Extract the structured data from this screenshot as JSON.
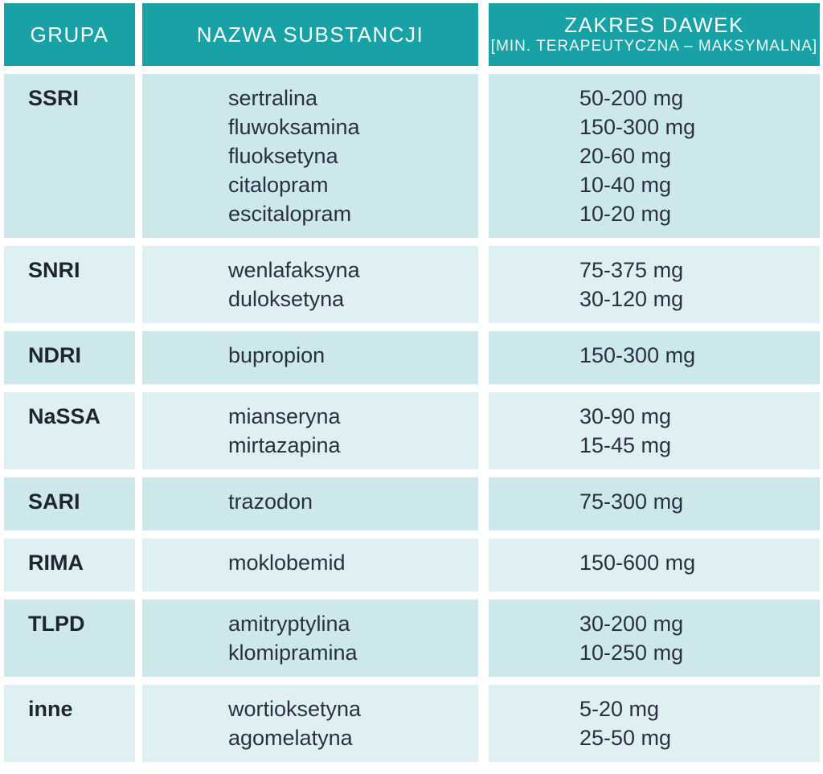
{
  "table": {
    "header": {
      "grupa": "GRUPA",
      "nazwa": "NAZWA SUBSTANCJI",
      "zakres_title": "ZAKRES DAWEK",
      "zakres_subtitle": "[MIN. TERAPEUTYCZNA – MAKSYMALNA]"
    },
    "rows": [
      {
        "group": "SSRI",
        "substances": [
          "sertralina",
          "fluwoksamina",
          "fluoksetyna",
          "citalopram",
          "escitalopram"
        ],
        "doses": [
          "50-200 mg",
          "150-300 mg",
          "20-60 mg",
          "10-40 mg",
          "10-20 mg"
        ]
      },
      {
        "group": "SNRI",
        "substances": [
          "wenlafaksyna",
          "duloksetyna"
        ],
        "doses": [
          "75-375 mg",
          "30-120 mg"
        ]
      },
      {
        "group": "NDRI",
        "substances": [
          "bupropion"
        ],
        "doses": [
          "150-300 mg"
        ]
      },
      {
        "group": "NaSSA",
        "substances": [
          "mianseryna",
          "mirtazapina"
        ],
        "doses": [
          "30-90 mg",
          "15-45 mg"
        ]
      },
      {
        "group": "SARI",
        "substances": [
          "trazodon"
        ],
        "doses": [
          "75-300 mg"
        ]
      },
      {
        "group": "RIMA",
        "substances": [
          "moklobemid"
        ],
        "doses": [
          "150-600 mg"
        ]
      },
      {
        "group": "TLPD",
        "substances": [
          "amitryptylina",
          "klomipramina"
        ],
        "doses": [
          "30-200 mg",
          "10-250 mg"
        ]
      },
      {
        "group": "inne",
        "substances": [
          "wortioksetyna",
          "agomelatyna"
        ],
        "doses": [
          "5-20 mg",
          "25-50 mg"
        ]
      }
    ]
  },
  "colors": {
    "header_bg": "#18a2a6",
    "row_dark": "#cde8eb",
    "row_light": "#dff0f2",
    "text_dark": "#2a3040",
    "group_dark": "#1e2430"
  }
}
